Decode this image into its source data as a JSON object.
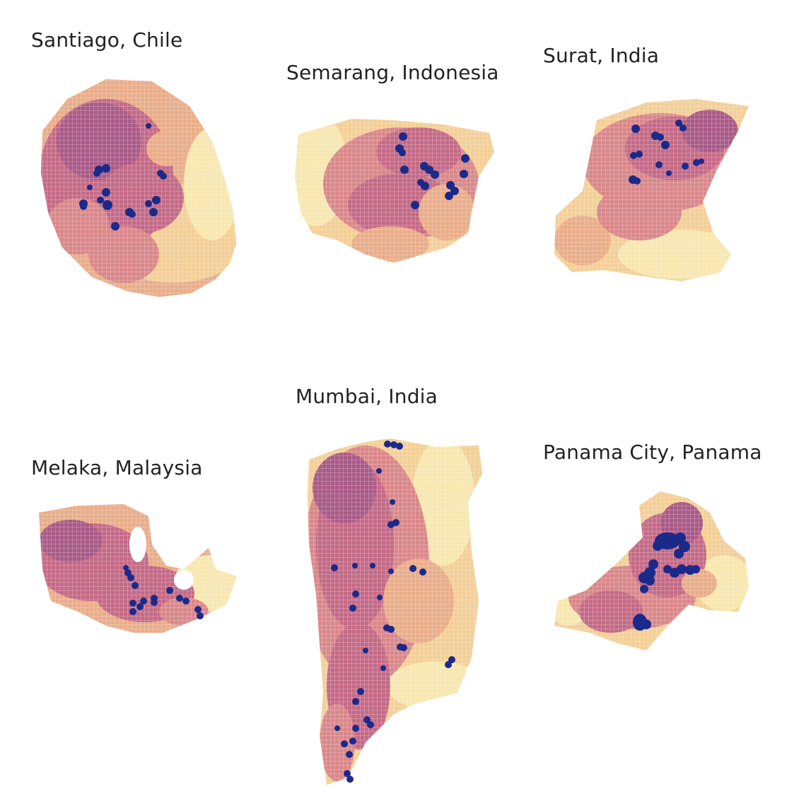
{
  "cities": [
    {
      "id": "santiago",
      "label": "Santiago, Chile",
      "points": 24
    },
    {
      "id": "semarang",
      "label": "Semarang, Indonesia",
      "points": 20
    },
    {
      "id": "surat",
      "label": "Surat, India",
      "points": 18
    },
    {
      "id": "melaka",
      "label": "Melaka, Malaysia",
      "points": 16
    },
    {
      "id": "mumbai",
      "label": "Mumbai, India",
      "points": 40
    },
    {
      "id": "panama",
      "label": "Panama City, Panama",
      "points": 22
    }
  ],
  "colors": {
    "ramp": [
      "#f7e7b0",
      "#f3cf98",
      "#e9ad8a",
      "#d9878a",
      "#c46a86",
      "#a95a86"
    ],
    "grid_stroke": "#ffffff",
    "points": "#1b2a8a"
  }
}
